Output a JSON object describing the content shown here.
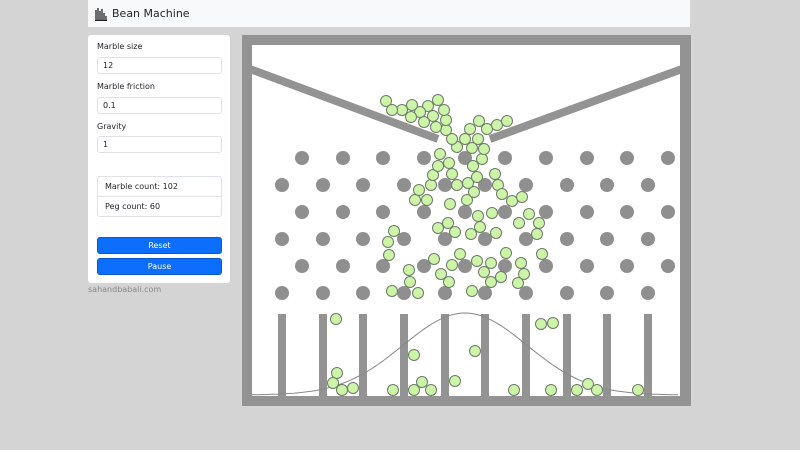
{
  "app": {
    "title": "Bean Machine",
    "logo_icon": "bean-machine-icon"
  },
  "controls": {
    "marble_size": {
      "label": "Marble size",
      "value": "12"
    },
    "marble_friction": {
      "label": "Marble friction",
      "value": "0.1"
    },
    "gravity": {
      "label": "Gravity",
      "value": "1"
    }
  },
  "stats": {
    "marble_count": "Marble count: 102",
    "peg_count": "Peg count: 60"
  },
  "buttons": {
    "reset": "Reset",
    "pause": "Pause"
  },
  "footer": {
    "credit": "sahandbabali.com"
  },
  "colors": {
    "accent": "#0d6efd",
    "wall": "#939393",
    "marble_fill": "#ccf5a8",
    "marble_stroke": "#6e7a6a",
    "peg": "#8f8f8f"
  }
}
